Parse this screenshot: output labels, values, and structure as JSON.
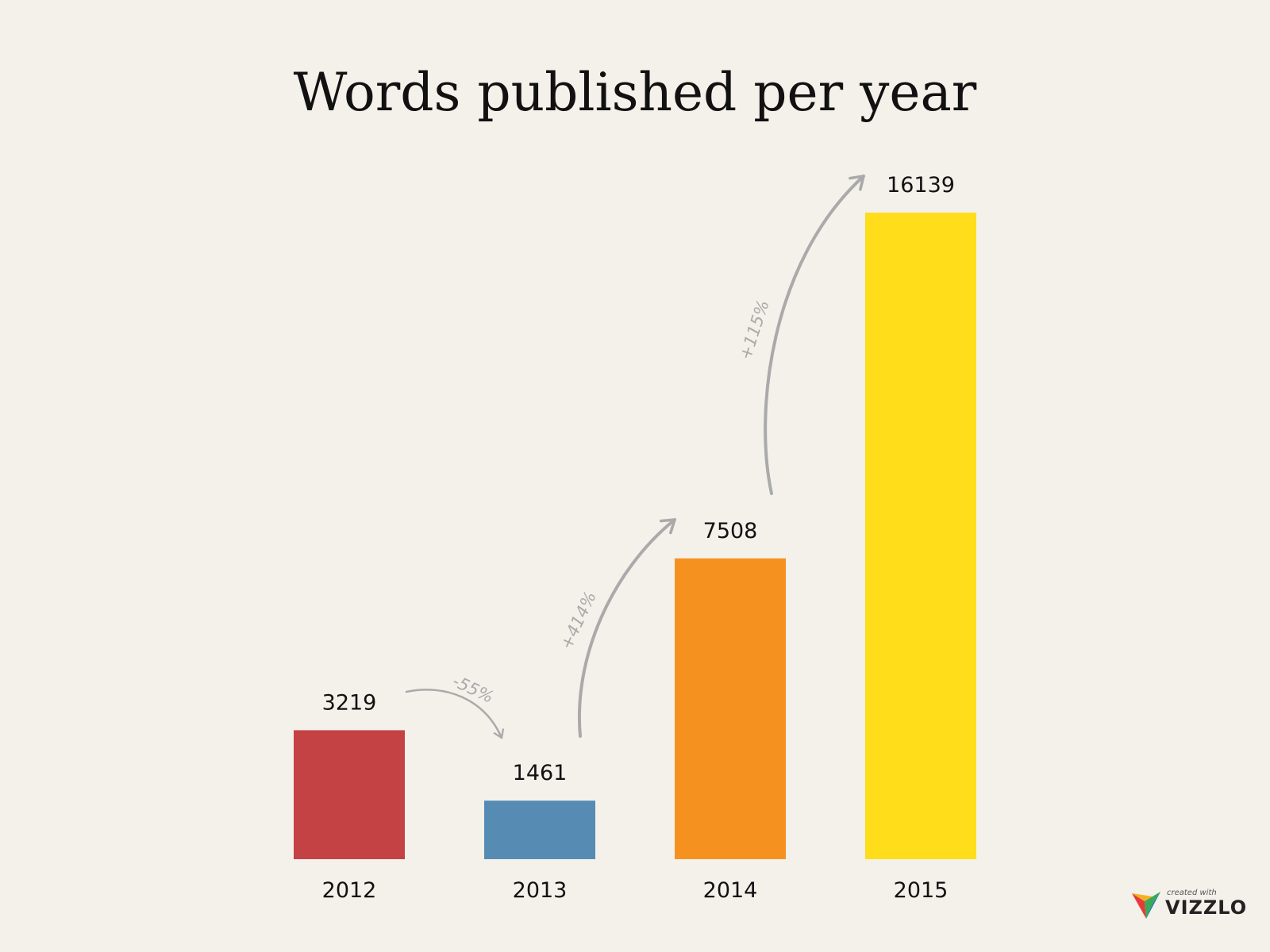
{
  "chart_data": {
    "type": "bar",
    "title": "Words published per year",
    "xlabel": "",
    "ylabel": "",
    "ylim": [
      0,
      16139
    ],
    "grid": false,
    "categories": [
      "2012",
      "2013",
      "2014",
      "2015"
    ],
    "values": [
      3219,
      1461,
      7508,
      16139
    ],
    "value_labels": [
      "3219",
      "1461",
      "7508",
      "16139"
    ],
    "colors": [
      "#c44244",
      "#568bb4",
      "#f5921f",
      "#ffdd1a"
    ],
    "annotations": [
      {
        "text": "-55%",
        "from": "2012",
        "to": "2013"
      },
      {
        "text": "+414%",
        "from": "2013",
        "to": "2014"
      },
      {
        "text": "+115%",
        "from": "2014",
        "to": "2015"
      }
    ]
  },
  "branding": {
    "small": "created with",
    "name": "VIZZLO",
    "colors": [
      "#e63a3a",
      "#f5b21f",
      "#3aaa5a",
      "#2e6fd1"
    ]
  }
}
